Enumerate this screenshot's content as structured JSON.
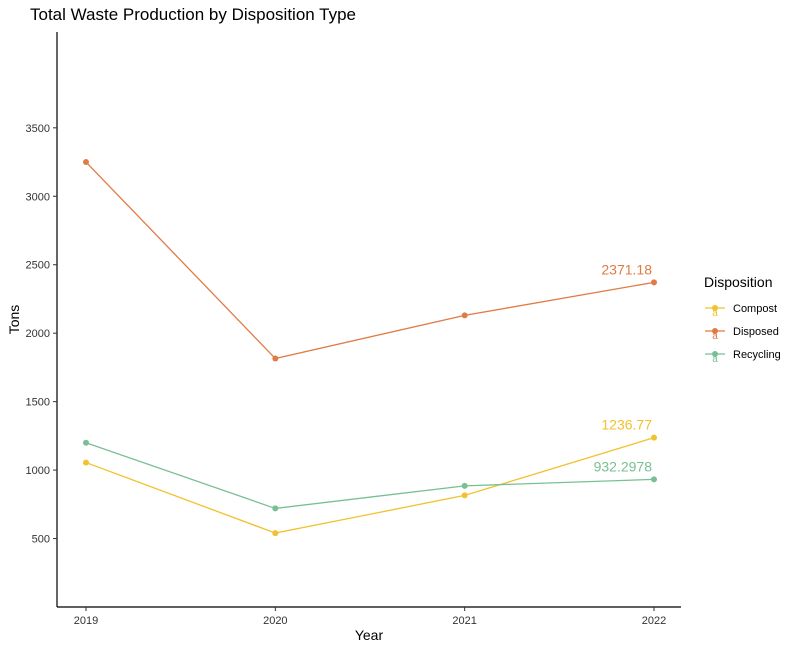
{
  "chart_data": {
    "type": "line",
    "title": "Total Waste Production by Disposition Type",
    "xlabel": "Year",
    "ylabel": "Tons",
    "x": [
      "2019",
      "2020",
      "2021",
      "2022"
    ],
    "ylim": [
      0,
      4200
    ],
    "yticks": [
      500,
      1000,
      1500,
      2000,
      2500,
      3000,
      3500
    ],
    "grid": false,
    "legend": {
      "title": "Disposition",
      "placement": "right",
      "key_letter": "a"
    },
    "series": [
      {
        "name": "Compost",
        "color": "#f2c12e",
        "values": [
          1055,
          540,
          815,
          1236.77
        ],
        "end_label": "1236.77"
      },
      {
        "name": "Disposed",
        "color": "#e07b45",
        "values": [
          3250,
          1815,
          2130,
          2371.18
        ],
        "end_label": "2371.18"
      },
      {
        "name": "Recycling",
        "color": "#78c093",
        "values": [
          1200,
          720,
          885,
          932.2978
        ],
        "end_label": "932.2978"
      }
    ]
  }
}
